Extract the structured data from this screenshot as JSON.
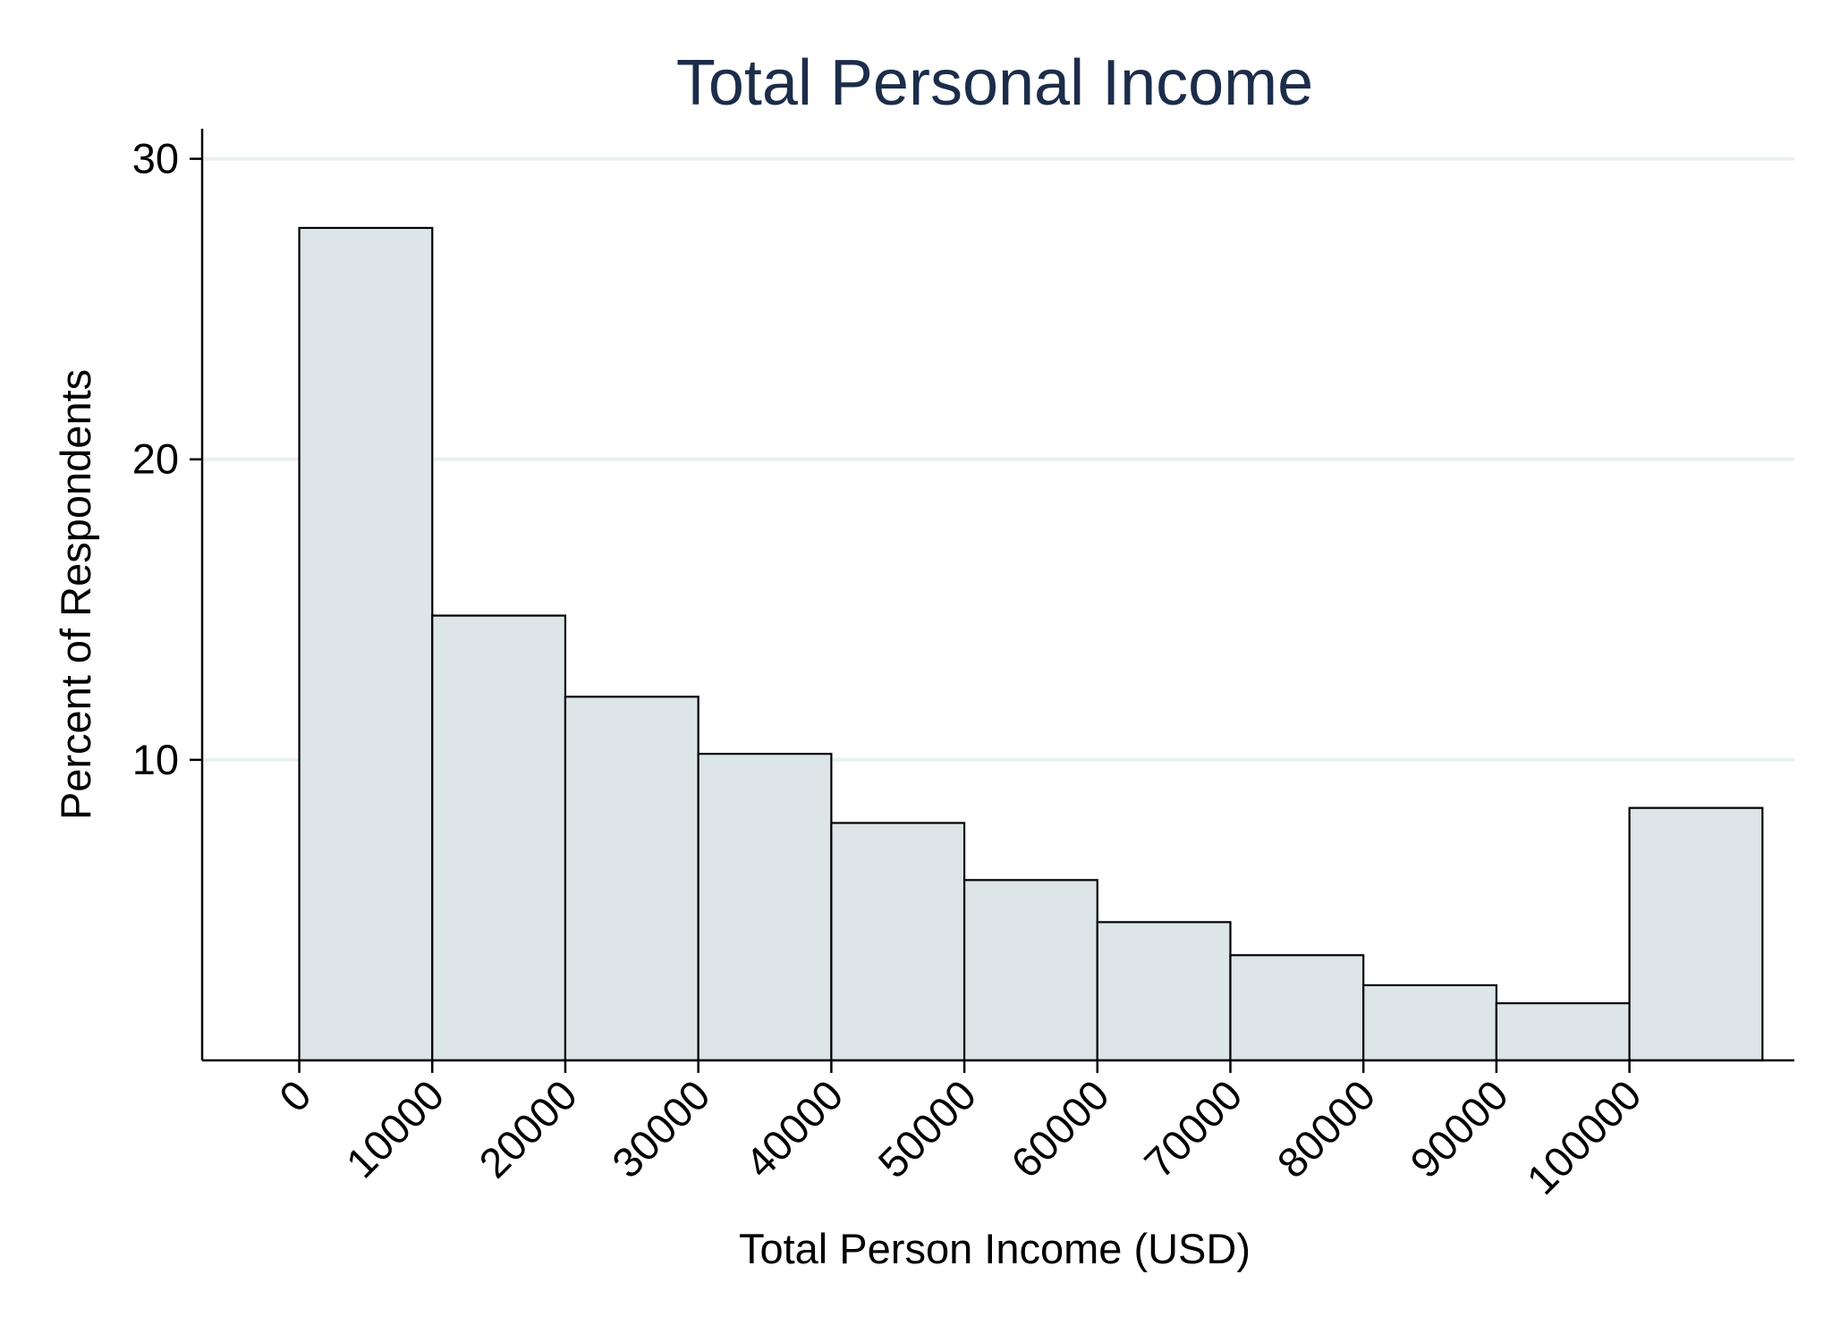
{
  "chart_data": {
    "type": "bar",
    "title": "Total Personal Income",
    "xlabel": "Total Person Income (USD)",
    "ylabel": "Percent of Respondents",
    "bins": [
      {
        "start": 0,
        "end": 10000,
        "value": 27.7
      },
      {
        "start": 10000,
        "end": 20000,
        "value": 14.8
      },
      {
        "start": 20000,
        "end": 30000,
        "value": 12.1
      },
      {
        "start": 30000,
        "end": 40000,
        "value": 10.2
      },
      {
        "start": 40000,
        "end": 50000,
        "value": 7.9
      },
      {
        "start": 50000,
        "end": 60000,
        "value": 6.0
      },
      {
        "start": 60000,
        "end": 70000,
        "value": 4.6
      },
      {
        "start": 70000,
        "end": 80000,
        "value": 3.5
      },
      {
        "start": 80000,
        "end": 90000,
        "value": 2.5
      },
      {
        "start": 90000,
        "end": 100000,
        "value": 1.9
      },
      {
        "start": 100000,
        "end": 110000,
        "value": 8.4
      }
    ],
    "xticks": [
      "0",
      "10000",
      "20000",
      "30000",
      "40000",
      "50000",
      "60000",
      "70000",
      "80000",
      "90000",
      "100000"
    ],
    "xtick_values": [
      0,
      10000,
      20000,
      30000,
      40000,
      50000,
      60000,
      70000,
      80000,
      90000,
      100000
    ],
    "yticks": [
      "10",
      "20",
      "30"
    ],
    "ytick_values": [
      10,
      20,
      30
    ],
    "xlim": [
      -7300,
      112400
    ],
    "ylim": [
      0,
      31
    ],
    "grid": true,
    "legend": "none",
    "colors": {
      "bar_fill": "#dce5e8",
      "bar_edge": "#000000",
      "title": "#1c2d4a",
      "grid": "#e9f0ef",
      "background": "#ffffff"
    }
  }
}
